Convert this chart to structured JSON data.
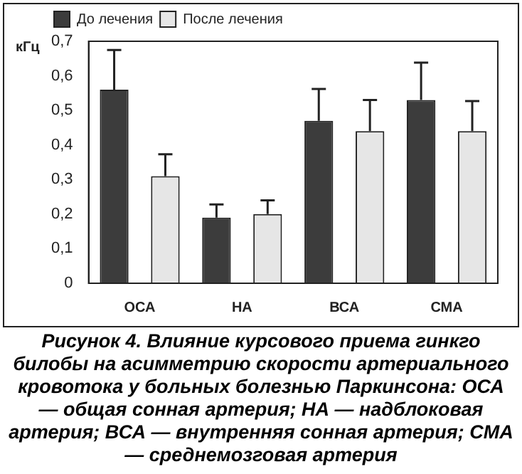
{
  "chart_data": {
    "type": "bar",
    "categories": [
      "ОСА",
      "НА",
      "ВСА",
      "СМА"
    ],
    "series": [
      {
        "name": "До лечения",
        "color": "#3c3c3c",
        "values": [
          0.56,
          0.19,
          0.47,
          0.53
        ],
        "errors": [
          [
            0.56,
            0.675
          ],
          [
            0.19,
            0.228
          ],
          [
            0.47,
            0.562
          ],
          [
            0.53,
            0.638
          ]
        ]
      },
      {
        "name": "После лечения",
        "color": "#e6e6e6",
        "values": [
          0.31,
          0.2,
          0.44,
          0.44
        ],
        "errors": [
          [
            0.31,
            0.373
          ],
          [
            0.2,
            0.24
          ],
          [
            0.44,
            0.53
          ],
          [
            0.44,
            0.527
          ]
        ]
      }
    ],
    "ylabel": "кГц",
    "ylim": [
      0,
      0.7
    ],
    "yticks": [
      0,
      {
        "value": 0.1,
        "label": "0,1"
      },
      {
        "value": 0.2,
        "label": "0,2"
      },
      {
        "value": 0.3,
        "label": "0,3"
      },
      {
        "value": 0.4,
        "label": "0,4"
      },
      {
        "value": 0.5,
        "label": "0,5"
      },
      {
        "value": 0.6,
        "label": "0,6"
      },
      {
        "value": 0.7,
        "label": "0,7"
      }
    ],
    "grid": false,
    "legend": "top",
    "annotations": [
      "Рисунок 4. Влияние курсового приема гинкго билобы на асимметрию скорости артериального кровотока у больных болезнью Паркинсона: ОСА — общая сонная артерия; НА — надблоковая артерия; ВСА — внутренняя сонная артерия; СМА — среднемозговая артерия"
    ]
  }
}
